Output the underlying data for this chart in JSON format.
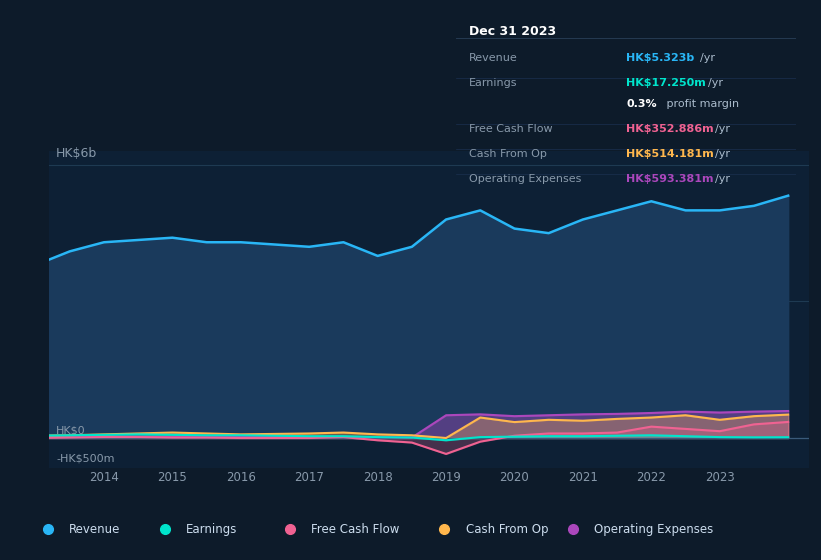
{
  "background_color": "#0d1b2a",
  "plot_bg_color": "#0d2035",
  "grid_color": "#1e3a52",
  "text_color": "#8899aa",
  "title_color": "#ffffff",
  "years": [
    2013.0,
    2013.5,
    2014.0,
    2014.5,
    2015.0,
    2015.5,
    2016.0,
    2016.5,
    2017.0,
    2017.5,
    2018.0,
    2018.5,
    2019.0,
    2019.5,
    2020.0,
    2020.5,
    2021.0,
    2021.5,
    2022.0,
    2022.5,
    2023.0,
    2023.5,
    2024.0
  ],
  "revenue": [
    3.8,
    4.1,
    4.3,
    4.35,
    4.4,
    4.3,
    4.3,
    4.25,
    4.2,
    4.3,
    4.0,
    4.2,
    4.8,
    5.0,
    4.6,
    4.5,
    4.8,
    5.0,
    5.2,
    5.0,
    5.0,
    5.1,
    5.323
  ],
  "earnings": [
    0.05,
    0.06,
    0.07,
    0.08,
    0.07,
    0.06,
    0.06,
    0.05,
    0.04,
    0.04,
    0.02,
    0.01,
    -0.05,
    0.02,
    0.03,
    0.04,
    0.04,
    0.05,
    0.06,
    0.04,
    0.02,
    0.015,
    0.01725
  ],
  "free_cash_flow": [
    0.0,
    0.01,
    0.02,
    0.02,
    0.01,
    0.01,
    0.0,
    0.0,
    0.0,
    0.02,
    -0.05,
    -0.1,
    -0.35,
    -0.08,
    0.05,
    0.1,
    0.1,
    0.12,
    0.25,
    0.2,
    0.15,
    0.3,
    0.353
  ],
  "cash_from_op": [
    0.05,
    0.06,
    0.08,
    0.1,
    0.12,
    0.1,
    0.08,
    0.09,
    0.1,
    0.12,
    0.08,
    0.06,
    0.0,
    0.45,
    0.35,
    0.4,
    0.38,
    0.42,
    0.45,
    0.5,
    0.4,
    0.48,
    0.514
  ],
  "operating_expenses": [
    0.02,
    0.03,
    0.03,
    0.03,
    0.02,
    0.02,
    0.02,
    0.02,
    0.02,
    0.02,
    0.02,
    0.01,
    0.5,
    0.52,
    0.48,
    0.5,
    0.52,
    0.53,
    0.55,
    0.58,
    0.56,
    0.58,
    0.593
  ],
  "revenue_color": "#29b6f6",
  "earnings_color": "#00e5cc",
  "fcf_color": "#f06292",
  "cashop_color": "#ffb74d",
  "opex_color": "#ab47bc",
  "revenue_fill": "#1a3a5c",
  "ylabel_text": "HK$6b",
  "y0_label": "HK$0",
  "yneg_label": "-HK$500m",
  "ylim_min": -0.65,
  "ylim_max": 6.3,
  "xticks": [
    2014,
    2015,
    2016,
    2017,
    2018,
    2019,
    2020,
    2021,
    2022,
    2023
  ],
  "legend_items": [
    {
      "label": "Revenue",
      "color": "#29b6f6"
    },
    {
      "label": "Earnings",
      "color": "#00e5cc"
    },
    {
      "label": "Free Cash Flow",
      "color": "#f06292"
    },
    {
      "label": "Cash From Op",
      "color": "#ffb74d"
    },
    {
      "label": "Operating Expenses",
      "color": "#ab47bc"
    }
  ],
  "tooltip": {
    "date": "Dec 31 2023",
    "rows": [
      {
        "label": "Revenue",
        "value": "HK$5.323b",
        "unit": "/yr",
        "color": "#29b6f6"
      },
      {
        "label": "Earnings",
        "value": "HK$17.250m",
        "unit": "/yr",
        "color": "#00e5cc"
      },
      {
        "label": "",
        "value": "0.3%",
        "unit": " profit margin",
        "color": "#ffffff"
      },
      {
        "label": "Free Cash Flow",
        "value": "HK$352.886m",
        "unit": "/yr",
        "color": "#f06292"
      },
      {
        "label": "Cash From Op",
        "value": "HK$514.181m",
        "unit": "/yr",
        "color": "#ffb74d"
      },
      {
        "label": "Operating Expenses",
        "value": "HK$593.381m",
        "unit": "/yr",
        "color": "#ab47bc"
      }
    ]
  }
}
